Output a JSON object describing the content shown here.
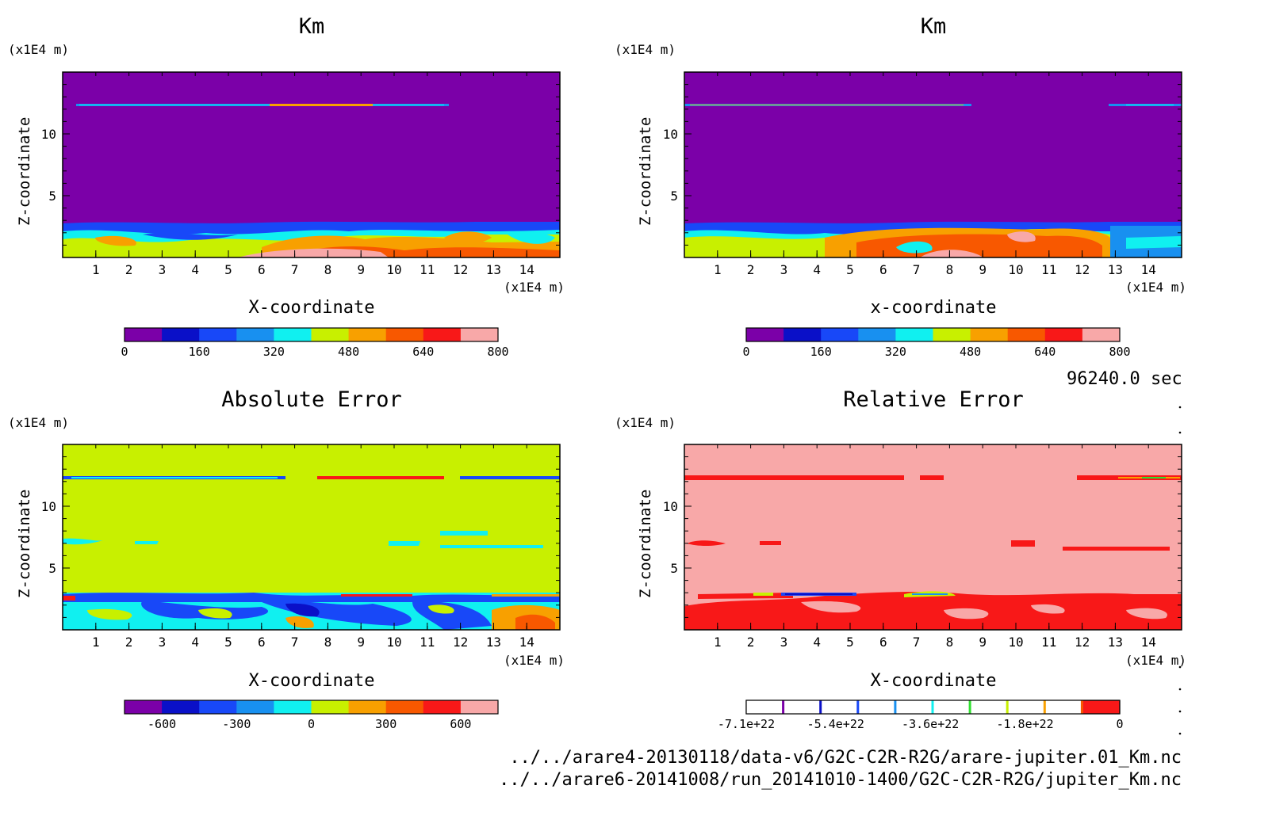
{
  "footer": {
    "time": "96240.0 sec",
    "files": [
      "../../arare4-20130118/data-v6/G2C-C2R-R2G/arare-jupiter.01_Km.nc",
      "../../arare6-20141008/run_20141010-1400/G2C-C2R-R2G/jupiter_Km.nc"
    ]
  },
  "chart_data": [
    {
      "type": "heatmap",
      "title": "Km",
      "xlabel": "X-coordinate",
      "ylabel": "Z-coordinate",
      "x_unit": "(x1E4 m)",
      "y_unit": "(x1E4 m)",
      "xlim": [
        0,
        15
      ],
      "ylim": [
        0,
        15
      ],
      "x_ticks": [
        1,
        2,
        3,
        4,
        5,
        6,
        7,
        8,
        9,
        10,
        11,
        12,
        13,
        14
      ],
      "y_ticks": [
        5,
        10
      ],
      "background_color": "#7b00a8",
      "colorbar": {
        "range": [
          0,
          800
        ],
        "tick_values": [
          0,
          160,
          320,
          480,
          640,
          800
        ],
        "tick_labels": [
          "0",
          "160",
          "320",
          "480",
          "640",
          "800"
        ],
        "colors": [
          "#7b00a8",
          "#0a10c8",
          "#1848f8",
          "#1890f0",
          "#10f0f0",
          "#c8f000",
          "#f8a000",
          "#f85800",
          "#f81818",
          "#f8a8a8"
        ]
      }
    },
    {
      "type": "heatmap",
      "title": "Km",
      "xlabel": "x-coordinate",
      "ylabel": "Z-coordinate",
      "x_unit": "(x1E4 m)",
      "y_unit": "(x1E4 m)",
      "xlim": [
        0,
        15
      ],
      "ylim": [
        0,
        15
      ],
      "x_ticks": [
        1,
        2,
        3,
        4,
        5,
        6,
        7,
        8,
        9,
        10,
        11,
        12,
        13,
        14
      ],
      "y_ticks": [
        5,
        10
      ],
      "background_color": "#7b00a8",
      "colorbar": {
        "range": [
          0,
          800
        ],
        "tick_values": [
          0,
          160,
          320,
          480,
          640,
          800
        ],
        "tick_labels": [
          "0",
          "160",
          "320",
          "480",
          "640",
          "800"
        ],
        "colors": [
          "#7b00a8",
          "#0a10c8",
          "#1848f8",
          "#1890f0",
          "#10f0f0",
          "#c8f000",
          "#f8a000",
          "#f85800",
          "#f81818",
          "#f8a8a8"
        ]
      }
    },
    {
      "type": "heatmap",
      "title": "Absolute Error",
      "xlabel": "X-coordinate",
      "ylabel": "Z-coordinate",
      "x_unit": "(x1E4 m)",
      "y_unit": "(x1E4 m)",
      "xlim": [
        0,
        15
      ],
      "ylim": [
        0,
        15
      ],
      "x_ticks": [
        1,
        2,
        3,
        4,
        5,
        6,
        7,
        8,
        9,
        10,
        11,
        12,
        13,
        14
      ],
      "y_ticks": [
        5,
        10
      ],
      "background_color": "#c8f000",
      "colorbar": {
        "range": [
          -750,
          750
        ],
        "tick_values": [
          -600,
          -300,
          0,
          300,
          600
        ],
        "tick_labels": [
          "-600",
          "-300",
          "0",
          "300",
          "600"
        ],
        "colors": [
          "#7b00a8",
          "#0a10c8",
          "#1848f8",
          "#1890f0",
          "#10f0f0",
          "#c8f000",
          "#f8a000",
          "#f85800",
          "#f81818",
          "#f8a8a8"
        ]
      }
    },
    {
      "type": "heatmap",
      "title": "Relative Error",
      "xlabel": "X-coordinate",
      "ylabel": "Z-coordinate",
      "x_unit": "(x1E4 m)",
      "y_unit": "(x1E4 m)",
      "xlim": [
        0,
        15
      ],
      "ylim": [
        0,
        15
      ],
      "x_ticks": [
        1,
        2,
        3,
        4,
        5,
        6,
        7,
        8,
        9,
        10,
        11,
        12,
        13,
        14
      ],
      "y_ticks": [
        5,
        10
      ],
      "background_color": "#f8a8a8",
      "colorbar": {
        "range": [
          -7.1e+22,
          0
        ],
        "tick_values": [
          -7.1e+22,
          -5.4e+22,
          -3.6e+22,
          -1.8e+22,
          0
        ],
        "tick_labels": [
          "-7.1e+22",
          "-5.4e+22",
          "-3.6e+22",
          "-1.8e+22",
          "0"
        ],
        "colors": [
          "#7b00a8",
          "#0a10c8",
          "#1848f8",
          "#1890f0",
          "#10f0f0",
          "#30e030",
          "#c8f000",
          "#f8a000",
          "#f85800",
          "#f81818"
        ]
      }
    }
  ]
}
